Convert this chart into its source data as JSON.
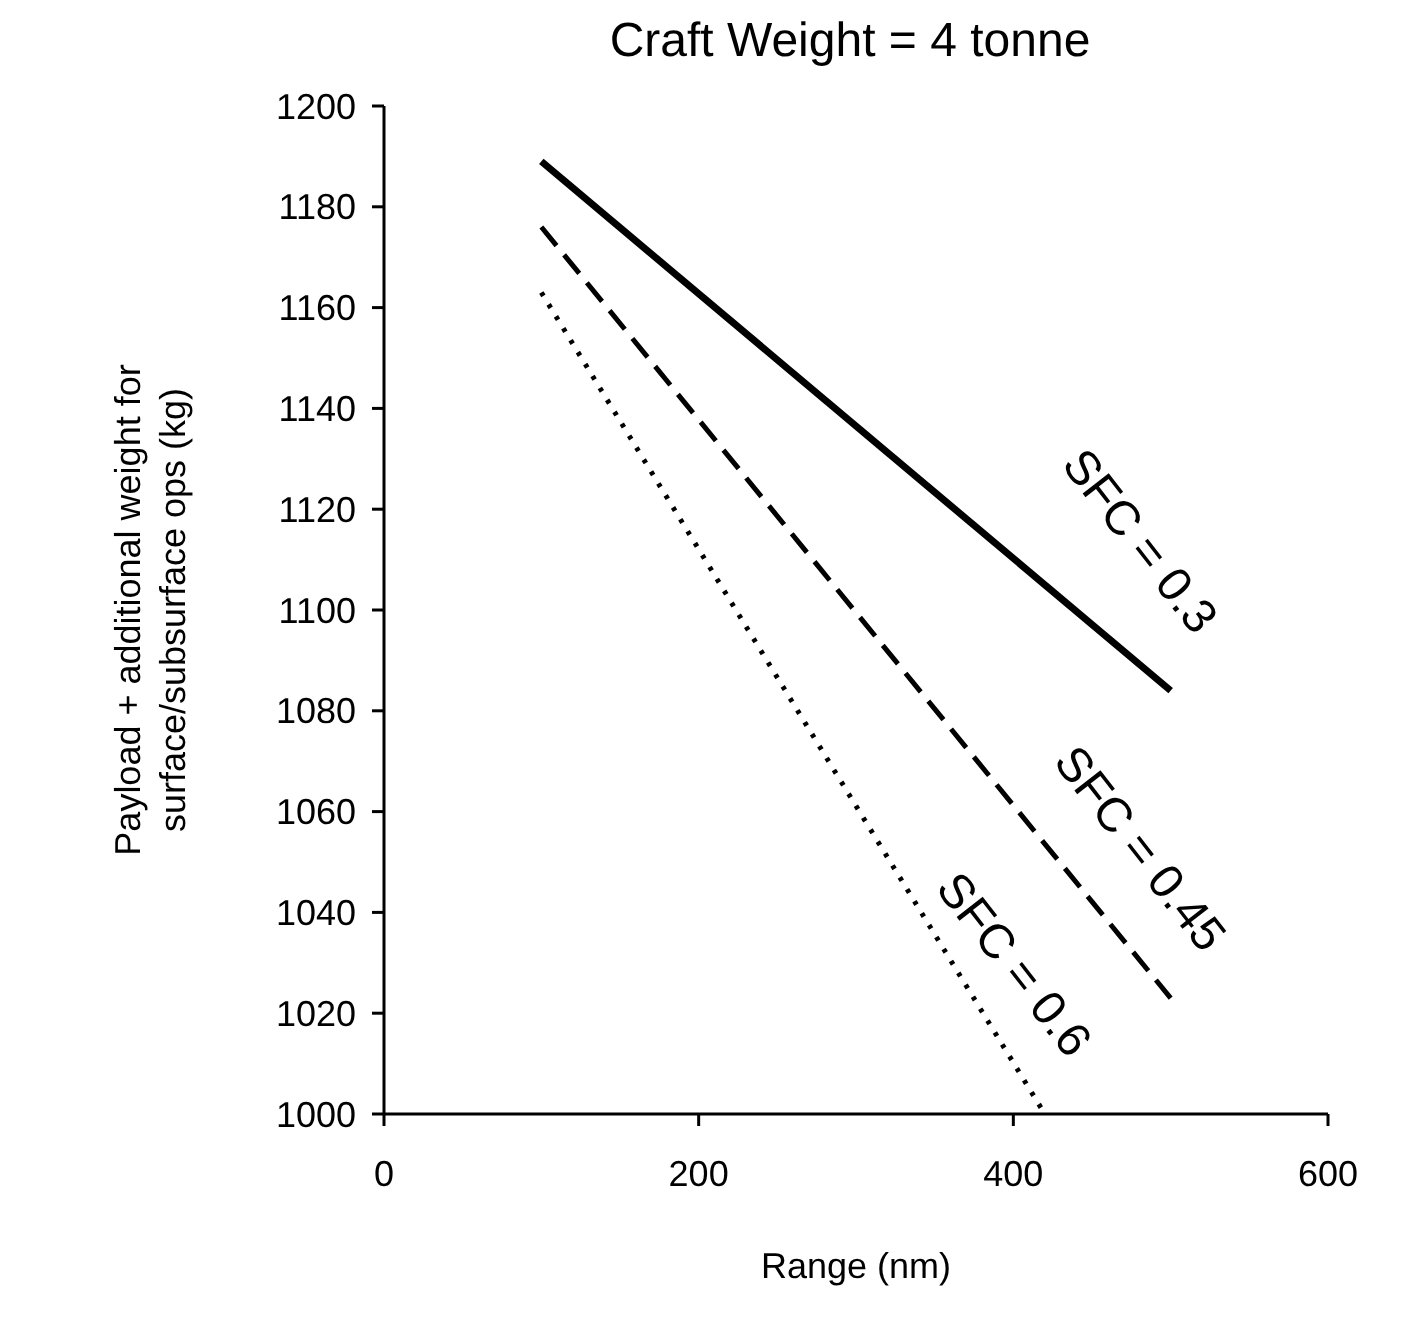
{
  "chart_data": {
    "type": "line",
    "title": "Craft Weight = 4 tonne",
    "xlabel": "Range (nm)",
    "ylabel": "Payload + additional weight for\nsurface/subsurface ops (kg)",
    "xlim": [
      0,
      600
    ],
    "xticks": [
      0,
      200,
      400,
      600
    ],
    "ylim": [
      1000,
      1200
    ],
    "yticks": [
      1000,
      1020,
      1040,
      1060,
      1080,
      1100,
      1120,
      1140,
      1160,
      1180,
      1200
    ],
    "grid": false,
    "series": [
      {
        "name": "SFC = 0.3",
        "color": "#000000",
        "line_style": "solid",
        "x": [
          100,
          500
        ],
        "values": [
          1189,
          1084
        ]
      },
      {
        "name": "SFC = 0.45",
        "color": "#000000",
        "line_style": "dashed",
        "x": [
          100,
          500
        ],
        "values": [
          1176,
          1023
        ]
      },
      {
        "name": "SFC = 0.6",
        "color": "#000000",
        "line_style": "dotted",
        "x": [
          100,
          420
        ],
        "values": [
          1163,
          1000
        ]
      }
    ]
  }
}
